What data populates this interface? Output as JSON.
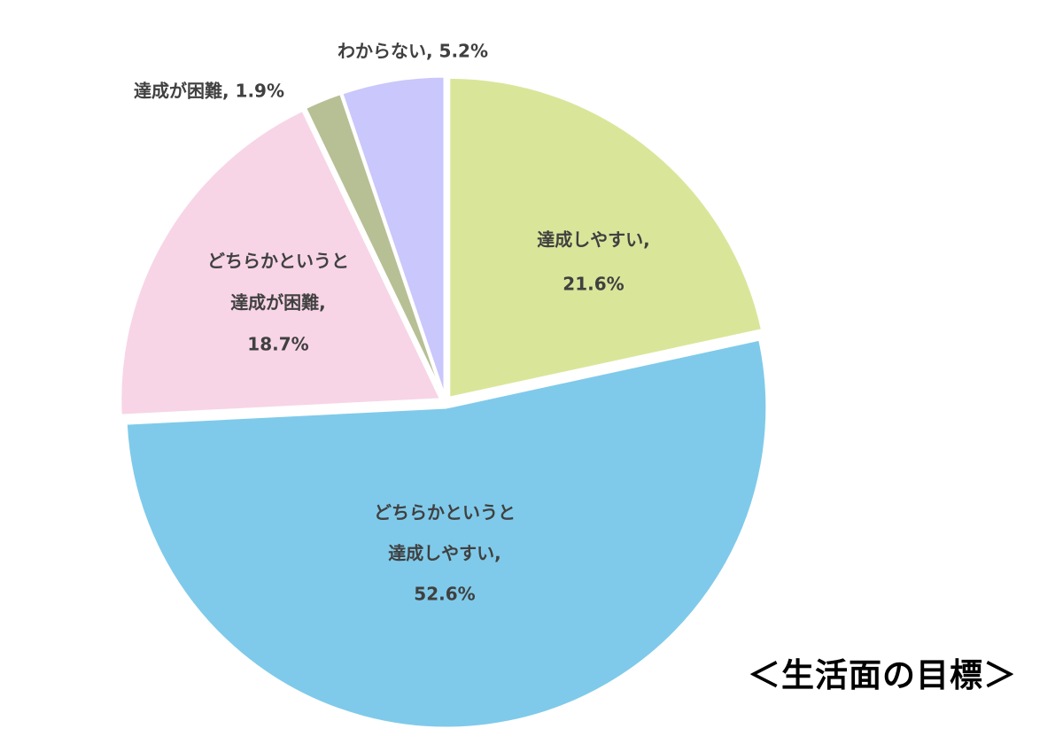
{
  "chart_data": {
    "type": "pie",
    "title": "＜生活面の目標＞",
    "slices": [
      {
        "name": "達成しやすい",
        "value": 21.6,
        "label_lines": [
          "達成しやすい,",
          "21.6%"
        ],
        "color": "#d9e69a",
        "label_position": "inside"
      },
      {
        "name": "どちらかというと達成しやすい",
        "value": 52.6,
        "label_lines": [
          "どちらかというと",
          "達成しやすい,",
          "52.6%"
        ],
        "color": "#7fcaea",
        "label_position": "inside"
      },
      {
        "name": "どちらかというと達成が困難",
        "value": 18.7,
        "label_lines": [
          "どちらかというと",
          "達成が困難,",
          "18.7%"
        ],
        "color": "#f7d5e6",
        "label_position": "inside"
      },
      {
        "name": "達成が困難",
        "value": 1.9,
        "label_lines": [
          "達成が困難, 1.9%"
        ],
        "color": "#b7bf95",
        "label_position": "outside"
      },
      {
        "name": "わからない",
        "value": 5.2,
        "label_lines": [
          "わからない, 5.2%"
        ],
        "color": "#c9c7fb",
        "label_position": "outside"
      }
    ],
    "start_angle_deg": 0,
    "direction": "clockwise",
    "legend": "none"
  }
}
